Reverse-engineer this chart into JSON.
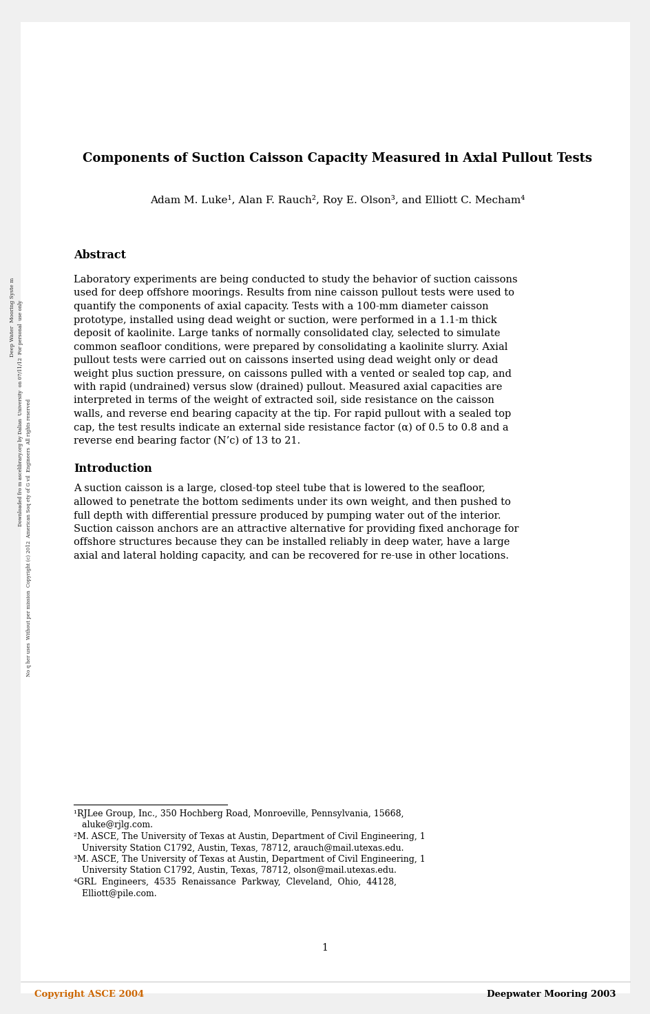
{
  "page_bg": "#f0f0f0",
  "paper_bg": "#ffffff",
  "title": "Components of Suction Caisson Capacity Measured in Axial Pullout Tests",
  "authors": "Adam M. Luke¹, Alan F. Rauch², Roy E. Olson³, and Elliott C. Mecham⁴",
  "abstract_heading": "Abstract",
  "abstract_text": "Laboratory experiments are being conducted to study the behavior of suction caissons used for deep offshore moorings. Results from nine caisson pullout tests were used to quantify the components of axial capacity. Tests with a 100-mm diameter caisson prototype, installed using dead weight or suction, were performed in a 1.1-m thick deposit of kaolinite. Large tanks of normally consolidated clay, selected to simulate common seafloor conditions, were prepared by consolidating a kaolinite slurry. Axial pullout tests were carried out on caissons inserted using dead weight only or dead weight plus suction pressure, on caissons pulled with a vented or sealed top cap, and with rapid (undrained) versus slow (drained) pullout. Measured axial capacities are interpreted in terms of the weight of extracted soil, side resistance on the caisson walls, and reverse end bearing capacity at the tip. For rapid pullout with a sealed top cap, the test results indicate an external side resistance factor (α) of 0.5 to 0.8 and a reverse end bearing factor (N’c) of 13 to 21.",
  "intro_heading": "Introduction",
  "intro_text": "A suction caisson is a large, closed-top steel tube that is lowered to the seafloor, allowed to penetrate the bottom sediments under its own weight, and then pushed to full depth with differential pressure produced by pumping water out of the interior. Suction caisson anchors are an attractive alternative for providing fixed anchorage for offshore structures because they can be installed reliably in deep water, have a large axial and lateral holding capacity, and can be recovered for re-use in other locations.",
  "footnote1_line1": "¹RJLee Group, Inc., 350 Hochberg Road, Monroeville, Pennsylvania, 15668,",
  "footnote1_line2": "   aluke@rjlg.com.",
  "footnote2_line1": "²M. ASCE, The University of Texas at Austin, Department of Civil Engineering, 1",
  "footnote2_line2": "   University Station C1792, Austin, Texas, 78712, arauch@mail.utexas.edu.",
  "footnote3_line1": "³M. ASCE, The University of Texas at Austin, Department of Civil Engineering, 1",
  "footnote3_line2": "   University Station C1792, Austin, Texas, 78712, olson@mail.utexas.edu.",
  "footnote4_line1": "⁴GRL  Engineers,  4535  Renaissance  Parkway,  Cleveland,  Ohio,  44128,",
  "footnote4_line2": "   Elliott@pile.com.",
  "page_number": "1",
  "footer_left": "Copyright ASCE 2004",
  "footer_right": "Deepwater Mooring 2003",
  "sidebar1": "Deep Water  Mooring Syste m",
  "sidebar2": "Downloaded fro m ascelibrary.org by Dalian  University  on 07/11/12  For personal  use only",
  "sidebar3": "No q her uses  Without per mission  Copyright (c) 2012  American Soq ety of G vil  Engineers  All rights reserved"
}
